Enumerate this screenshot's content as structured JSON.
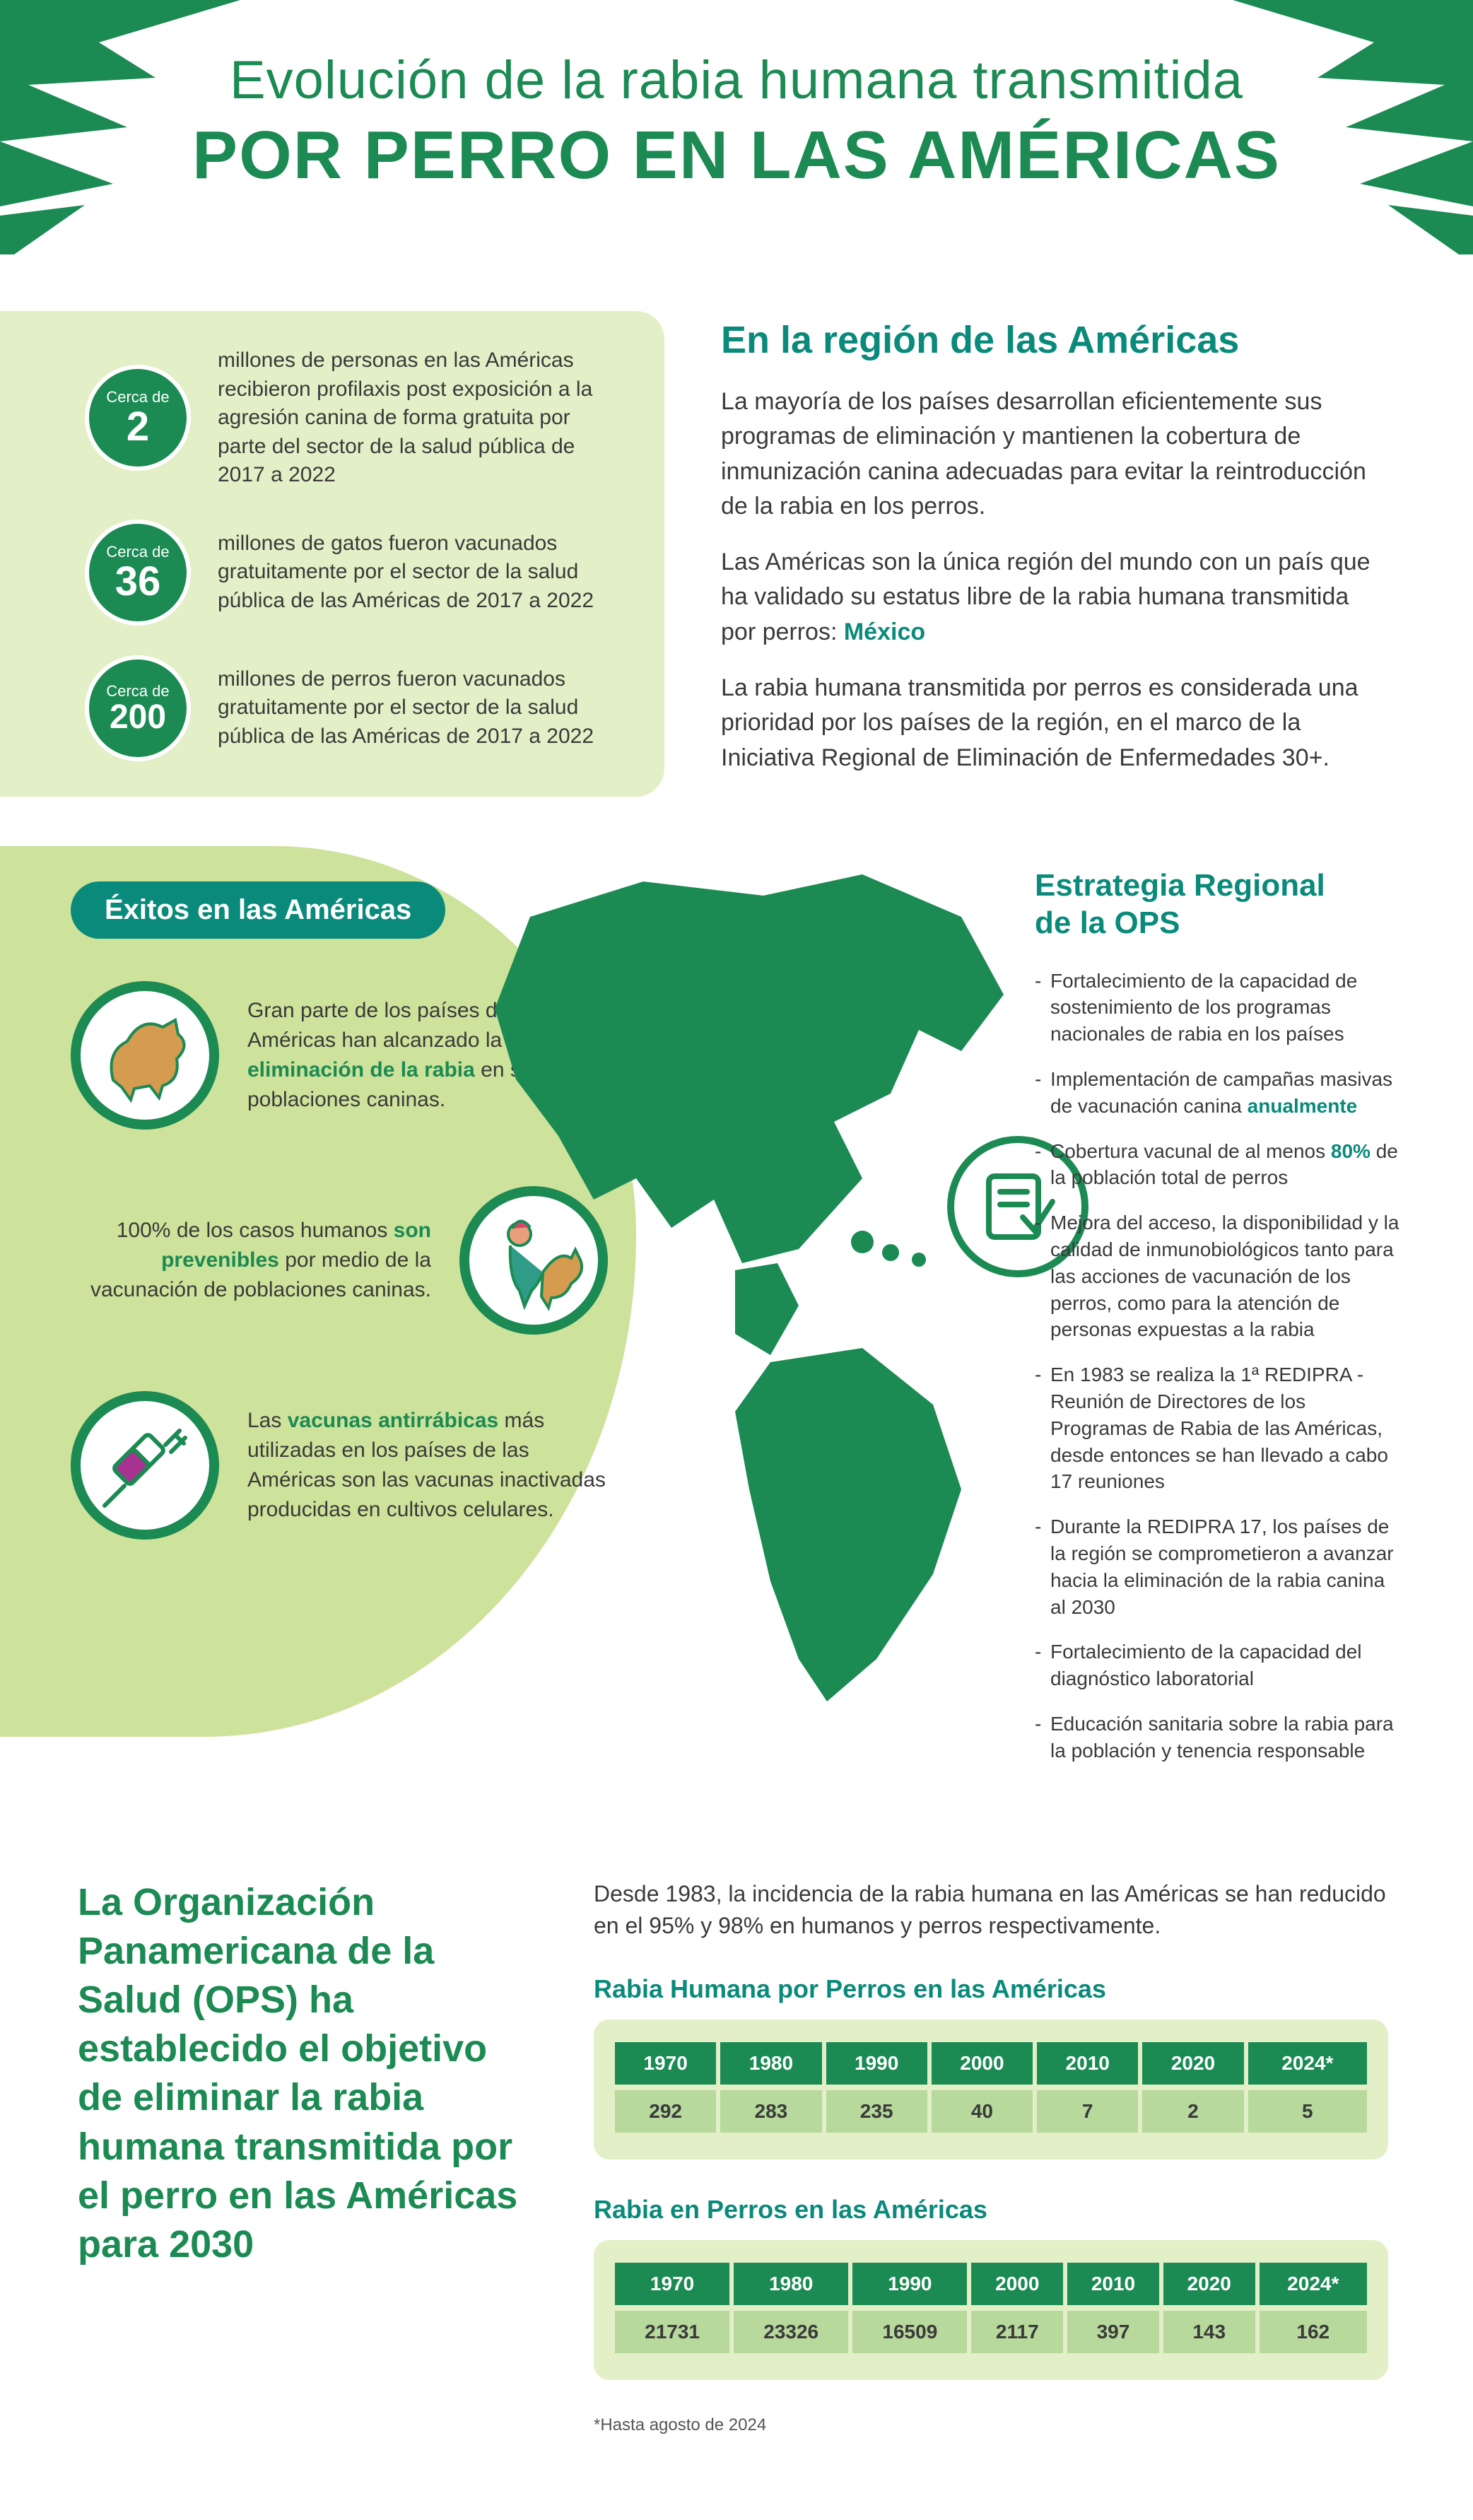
{
  "colors": {
    "green_dark": "#1b8a53",
    "green_text": "#1b8a53",
    "green_bright": "#2aa05c",
    "teal": "#0a8a7a",
    "lime_card": "#e3efc6",
    "lime_blob": "#cde29a",
    "lime_table": "#e3efc6",
    "row_header": "#1b8a53",
    "row_cell": "#b7d99c",
    "body_text": "#3a3a3a",
    "magenta": "#a83290"
  },
  "title": {
    "line1": "Evolución de la rabia humana transmitida",
    "line2": "POR PERRO EN LAS AMÉRICAS"
  },
  "stats": {
    "prefix": "Cerca de",
    "items": [
      {
        "num": "2",
        "text": "millones de personas en las Américas recibieron profilaxis post exposición a la agresión canina de forma gratuita por parte del sector de la salud pública de 2017 a 2022"
      },
      {
        "num": "36",
        "text": "millones de gatos fueron vacunados gratuitamente por el sector de la salud pública de las Américas de 2017 a 2022"
      },
      {
        "num": "200",
        "text": "millones de perros fueron vacunados gratuitamente por el sector de la salud pública de las Américas de 2017 a 2022"
      }
    ]
  },
  "region": {
    "heading": "En la región de las Américas",
    "p1": "La mayoría de los países desarrollan eficientemente sus programas de eliminación y mantienen la cobertura de inmunización canina adecuadas para evitar la reintroducción de la rabia en los perros.",
    "p2_a": "Las Américas son la única región del mundo con un país que ha validado su estatus libre de la rabia humana transmitida por perros: ",
    "p2_b": "México",
    "p3": "La rabia humana transmitida por perros es considerada una prioridad por los países de la región, en el marco de la Iniciativa Regional de Eliminación de Enfermedades 30+."
  },
  "successes": {
    "pill": "Éxitos en las Américas",
    "items": [
      {
        "icon": "dog",
        "pre": "Gran parte de los países de las Américas han alcanzado la ",
        "bold": "eliminación de la rabia",
        "post": " en sus poblaciones caninas."
      },
      {
        "icon": "vetplay",
        "pre": "100% de los casos humanos ",
        "bold": "son prevenibles",
        "post": " por medio de la vacunación de poblaciones caninas."
      },
      {
        "icon": "syringe",
        "pre": "Las ",
        "bold": "vacunas antirrábicas",
        "post": " más utilizadas en los países de las Américas son las vacunas inactivadas producidas en cultivos celulares."
      }
    ]
  },
  "strategy": {
    "heading_l1": "Estrategia Regional",
    "heading_l2": "de la OPS",
    "items": [
      {
        "t": "Fortalecimiento de la capacidad de sostenimiento de los programas nacionales de rabia en los países"
      },
      {
        "t": "Implementación de campañas masivas de vacunación canina ",
        "hl": "anualmente"
      },
      {
        "t": "Cobertura vacunal de al menos ",
        "hl": "80%",
        "t2": " de la población total de perros"
      },
      {
        "t": "Mejora del acceso, la disponibilidad y la calidad de inmunobiológicos tanto para las acciones de vacunación de los perros, como para la atención de personas expuestas a la rabia"
      },
      {
        "t": "En 1983 se realiza la 1ª REDIPRA - Reunión de Directores de los Programas de Rabia de las Américas, desde entonces se han llevado a cabo 17 reuniones"
      },
      {
        "t": "Durante la REDIPRA 17, los países de la región se comprometieron a avanzar hacia la eliminación de la rabia canina al 2030"
      },
      {
        "t": "Fortalecimiento de la capacidad del diagnóstico laboratorial"
      },
      {
        "t": "Educación sanitaria sobre la rabia para la población y tenencia responsable"
      }
    ]
  },
  "big_quote": "La Organización Panamericana de la Salud (OPS) ha establecido el objetivo de eliminar la rabia humana transmitida por el perro en las Américas para 2030",
  "tables": {
    "intro": "Desde 1983, la incidencia de la rabia humana en las Américas se han reducido en el 95% y 98% en humanos y perros respectivamente.",
    "footnote": "*Hasta agosto de 2024",
    "years": [
      "1970",
      "1980",
      "1990",
      "2000",
      "2010",
      "2020",
      "2024*"
    ],
    "humans": {
      "title": "Rabia Humana por Perros en las Américas",
      "values": [
        "292",
        "283",
        "235",
        "40",
        "7",
        "2",
        "5"
      ]
    },
    "dogs": {
      "title": "Rabia en Perros en las Américas",
      "values": [
        "21731",
        "23326",
        "16509",
        "2117",
        "397",
        "143",
        "162"
      ]
    }
  }
}
